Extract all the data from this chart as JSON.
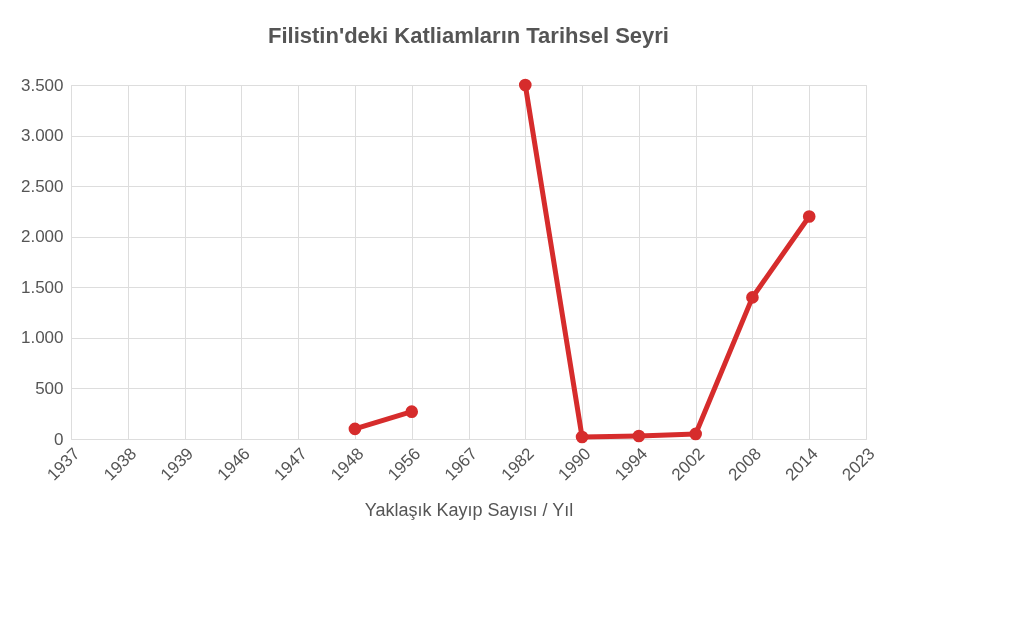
{
  "chart_data": {
    "type": "line",
    "title": "Filistin'deki Katliamların Tarihsel Seyri",
    "xlabel": "Yaklaşık Kayıp Sayısı / Yıl",
    "categories": [
      "1937",
      "1938",
      "1939",
      "1946",
      "1947",
      "1948",
      "1956",
      "1967",
      "1982",
      "1990",
      "1994",
      "2002",
      "2008",
      "2014",
      "2023"
    ],
    "series": [
      {
        "color": "#d62c2c",
        "values": [
          null,
          null,
          null,
          null,
          null,
          100,
          270,
          null,
          3500,
          20,
          30,
          50,
          1400,
          2200,
          null
        ]
      }
    ],
    "ylim": [
      0,
      3500
    ],
    "yticks": [
      {
        "value": 0,
        "label": "0"
      },
      {
        "value": 500,
        "label": "500"
      },
      {
        "value": 1000,
        "label": "1.000"
      },
      {
        "value": 1500,
        "label": "1.500"
      },
      {
        "value": 2000,
        "label": "2.000"
      },
      {
        "value": 2500,
        "label": "2.500"
      },
      {
        "value": 3000,
        "label": "3.000"
      },
      {
        "value": 3500,
        "label": "3.500"
      }
    ],
    "grid": true,
    "marker": "circle",
    "line_style": "solid"
  }
}
